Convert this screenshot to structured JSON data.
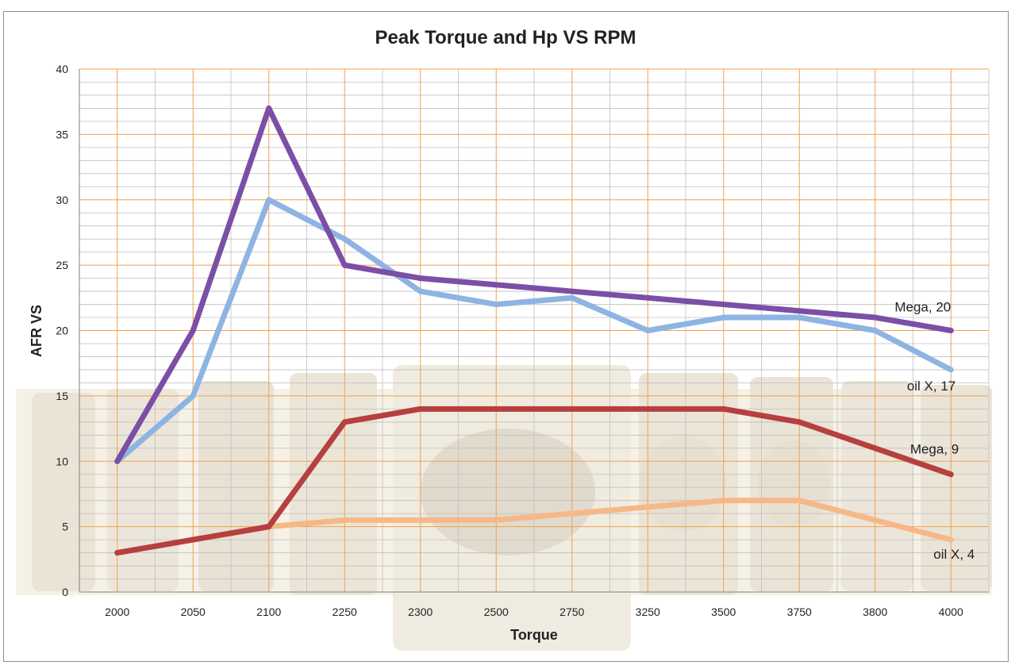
{
  "chart_data": {
    "type": "line",
    "title": "Peak Torque and Hp VS RPM",
    "xlabel": "Torque",
    "ylabel": "AFR VS",
    "categories": [
      "2000",
      "2050",
      "2100",
      "2250",
      "2300",
      "2500",
      "2750",
      "3250",
      "3500",
      "3750",
      "3800",
      "4000"
    ],
    "ylim": [
      0,
      40
    ],
    "yticks": [
      0,
      5,
      10,
      15,
      20,
      25,
      30,
      35,
      40
    ],
    "grid": true,
    "legend": "none",
    "series": [
      {
        "name": "Mega",
        "color": "#7b4fa6",
        "values": [
          10,
          20,
          37,
          25,
          24,
          23.5,
          23,
          22.5,
          22,
          21.5,
          21,
          20
        ],
        "end_label": "Mega, 20"
      },
      {
        "name": "oil X",
        "color": "#8db4e2",
        "values": [
          10,
          15,
          30,
          27,
          23,
          22,
          22.5,
          20,
          21,
          21,
          20,
          17
        ],
        "end_label": "oil X, 17"
      },
      {
        "name": "Mega",
        "color": "#b5403f",
        "values": [
          3,
          4,
          5,
          13,
          14,
          14,
          14,
          14,
          14,
          13,
          11,
          9
        ],
        "end_label": "Mega, 9"
      },
      {
        "name": "oil X",
        "color": "#f6b888",
        "values": [
          3,
          4,
          5,
          5.5,
          5.5,
          5.5,
          6,
          6.5,
          7,
          7,
          5.5,
          4
        ],
        "end_label": "oil X, 4"
      }
    ]
  },
  "colors": {
    "major_grid": "#f0a050",
    "minor_grid": "#bfbfbf",
    "axis": "#808080",
    "background_photo_tint": "#f2ead8"
  }
}
